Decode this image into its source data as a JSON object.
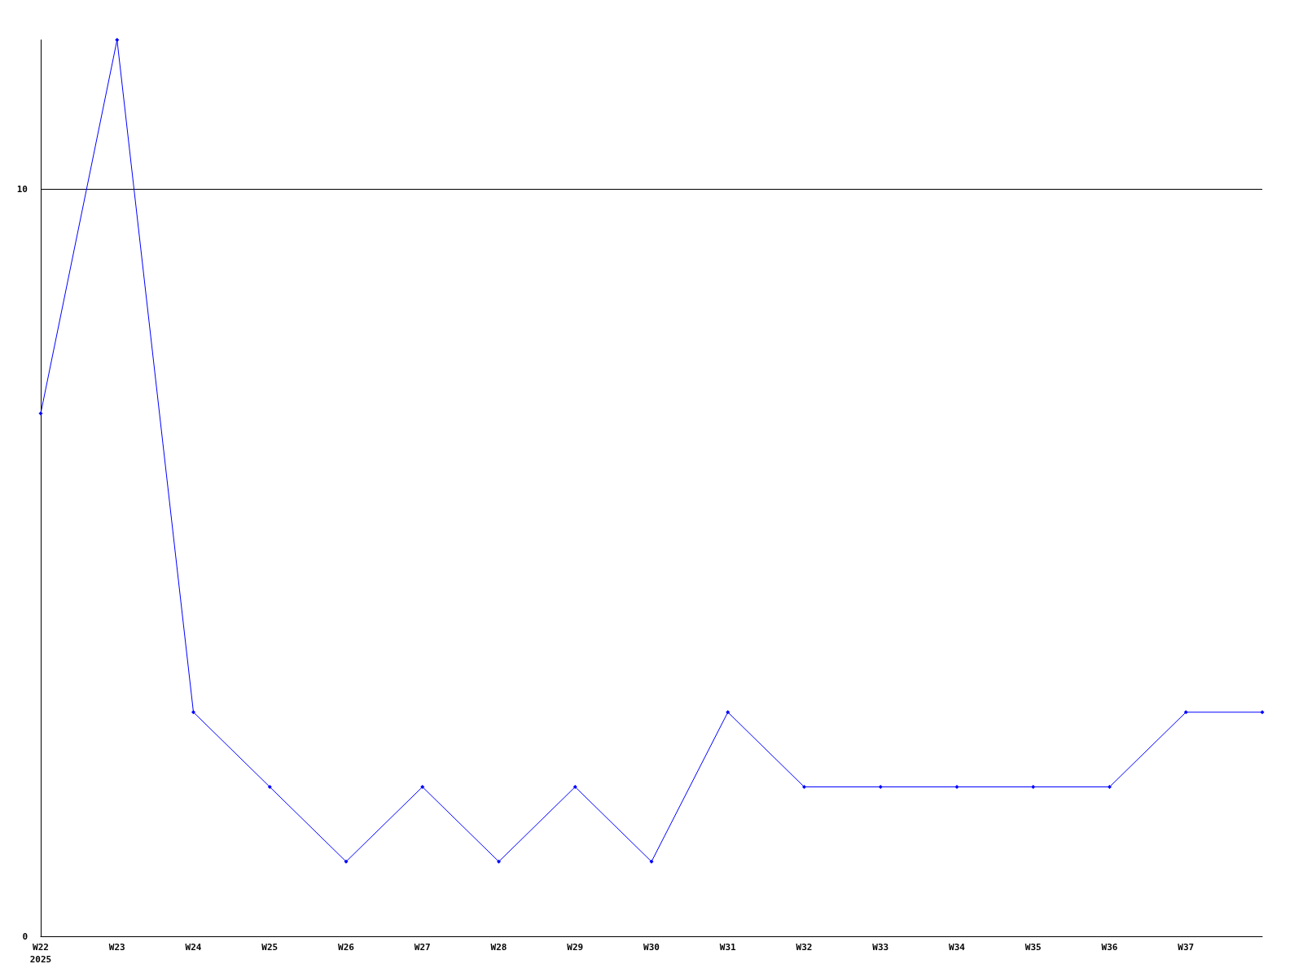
{
  "chart_data": {
    "type": "line",
    "categories": [
      "W22\n2025",
      "W23",
      "W24",
      "W25",
      "W26",
      "W27",
      "W28",
      "W29",
      "W30",
      "W31",
      "W32",
      "W33",
      "W34",
      "W35",
      "W36",
      "W37",
      null
    ],
    "series": [
      {
        "color": "#0000ff",
        "values": [
          7,
          12,
          3,
          2,
          1,
          2,
          1,
          2,
          1,
          3,
          2,
          2,
          2,
          2,
          2,
          3,
          3
        ]
      }
    ],
    "ylim": [
      0,
      12
    ],
    "yticks": [
      0,
      10
    ],
    "grid": "y",
    "marker": "diamond",
    "line_style": "solid"
  }
}
